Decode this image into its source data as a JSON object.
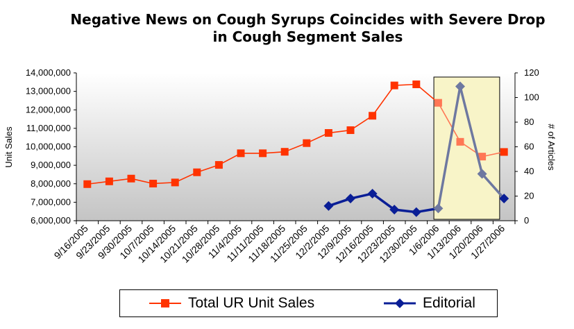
{
  "title": {
    "line1": "Negative News on Cough Syrups Coincides with Severe Drop",
    "line2": "in Cough Segment Sales"
  },
  "chart_data": {
    "type": "line",
    "title": "Negative News on Cough Syrups Coincides with Severe Drop in Cough Segment Sales",
    "categories": [
      "9/16/2005",
      "9/23/2005",
      "9/30/2005",
      "10/7/2005",
      "10/14/2005",
      "10/21/2005",
      "10/28/2005",
      "11/4/2005",
      "11/11/2005",
      "11/18/2005",
      "11/25/2005",
      "12/2/2005",
      "12/9/2005",
      "12/16/2005",
      "12/23/2005",
      "12/30/2005",
      "1/6/2006",
      "1/13/2006",
      "1/20/2006",
      "1/27/2006"
    ],
    "y_left": {
      "label": "Unit Sales",
      "min": 6000000,
      "max": 14000000,
      "step": 1000000,
      "tick_labels": [
        "6,000,000",
        "7,000,000",
        "8,000,000",
        "9,000,000",
        "10,000,000",
        "11,000,000",
        "12,000,000",
        "13,000,000",
        "14,000,000"
      ]
    },
    "y_right": {
      "label": "# of Articles",
      "min": 0,
      "max": 120,
      "step": 20,
      "tick_labels": [
        "0",
        "20",
        "40",
        "60",
        "80",
        "100",
        "120"
      ]
    },
    "series": [
      {
        "name": "Total UR Unit Sales",
        "axis": "left",
        "color": "#ff3300",
        "highlight_color": "#ff7755",
        "marker": "square",
        "values": [
          7980000,
          8130000,
          8280000,
          8010000,
          8070000,
          8620000,
          9020000,
          9650000,
          9650000,
          9730000,
          10200000,
          10750000,
          10900000,
          11680000,
          13320000,
          13380000,
          12380000,
          10270000,
          9470000,
          9720000
        ]
      },
      {
        "name": "Editorial",
        "axis": "right",
        "color": "#0a1e96",
        "highlight_color": "#6e78a0",
        "marker": "diamond",
        "values": [
          null,
          null,
          null,
          null,
          null,
          null,
          null,
          null,
          null,
          null,
          null,
          12,
          18,
          22,
          9,
          7,
          10,
          109,
          38,
          18
        ]
      }
    ],
    "highlight_range": {
      "from": "1/6/2006",
      "to": "1/20/2006",
      "fill": "#f8f4c8",
      "border": "#000000"
    },
    "background": "gradient-gray",
    "grid": false,
    "legend": "bottom-center"
  },
  "legend": {
    "items": [
      {
        "label": "Total UR Unit Sales",
        "color": "#ff3300",
        "marker": "square"
      },
      {
        "label": "Editorial",
        "color": "#0a1e96",
        "marker": "diamond"
      }
    ]
  }
}
